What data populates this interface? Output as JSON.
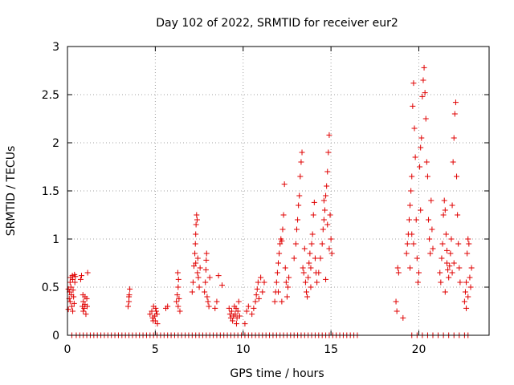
{
  "chart_data": {
    "type": "scatter",
    "title": "Day 102 of 2022, SRMTID for receiver eur2",
    "xlabel": "GPS time / hours",
    "ylabel": "SRMTID / TECUs",
    "xlim": [
      0,
      24
    ],
    "ylim": [
      0,
      3
    ],
    "xticks": [
      0,
      5,
      10,
      15,
      20
    ],
    "xtick_labels": [
      "0",
      "5",
      "10",
      "15",
      "20"
    ],
    "yticks": [
      0,
      0.5,
      1,
      1.5,
      2,
      2.5,
      3
    ],
    "ytick_labels": [
      "0",
      "0.5",
      "1",
      "1.5",
      "2",
      "2.5",
      "3"
    ],
    "grid": true,
    "marker": "plus",
    "color": "#e00000",
    "series": [
      {
        "name": "SRMTID",
        "points": [
          [
            0.05,
            0.27
          ],
          [
            0.1,
            0.38
          ],
          [
            0.12,
            0.45
          ],
          [
            0.15,
            0.55
          ],
          [
            0.18,
            0.6
          ],
          [
            0.2,
            0.5
          ],
          [
            0.22,
            0.42
          ],
          [
            0.25,
            0.3
          ],
          [
            0.28,
            0.62
          ],
          [
            0.3,
            0.58
          ],
          [
            0.32,
            0.47
          ],
          [
            0.35,
            0.4
          ],
          [
            0.38,
            0.33
          ],
          [
            0.4,
            0.63
          ],
          [
            0.42,
            0.55
          ],
          [
            0.45,
            0.61
          ],
          [
            0.05,
            0.48
          ],
          [
            0.15,
            0.35
          ],
          [
            0.3,
            0.25
          ],
          [
            0.75,
            0.58
          ],
          [
            0.8,
            0.62
          ],
          [
            0.85,
            0.3
          ],
          [
            0.88,
            0.42
          ],
          [
            0.9,
            0.35
          ],
          [
            0.95,
            0.28
          ],
          [
            1.0,
            0.32
          ],
          [
            1.05,
            0.22
          ],
          [
            1.1,
            0.38
          ],
          [
            1.12,
            0.3
          ],
          [
            1.15,
            0.65
          ],
          [
            0.9,
            0.25
          ],
          [
            1.0,
            0.4
          ],
          [
            3.45,
            0.3
          ],
          [
            3.5,
            0.35
          ],
          [
            3.52,
            0.42
          ],
          [
            3.55,
            0.48
          ],
          [
            3.5,
            0.4
          ],
          [
            4.7,
            0.22
          ],
          [
            4.8,
            0.25
          ],
          [
            4.85,
            0.18
          ],
          [
            4.9,
            0.3
          ],
          [
            4.95,
            0.2
          ],
          [
            5.0,
            0.15
          ],
          [
            5.05,
            0.25
          ],
          [
            5.1,
            0.22
          ],
          [
            5.12,
            0.12
          ],
          [
            4.88,
            0.15
          ],
          [
            5.02,
            0.28
          ],
          [
            5.6,
            0.28
          ],
          [
            5.7,
            0.3
          ],
          [
            6.2,
            0.35
          ],
          [
            6.25,
            0.42
          ],
          [
            6.3,
            0.5
          ],
          [
            6.32,
            0.58
          ],
          [
            6.28,
            0.65
          ],
          [
            6.35,
            0.38
          ],
          [
            6.4,
            0.25
          ],
          [
            6.3,
            0.3
          ],
          [
            7.1,
            0.45
          ],
          [
            7.15,
            0.55
          ],
          [
            7.2,
            0.72
          ],
          [
            7.25,
            0.85
          ],
          [
            7.28,
            0.95
          ],
          [
            7.3,
            1.05
          ],
          [
            7.32,
            1.15
          ],
          [
            7.35,
            1.25
          ],
          [
            7.38,
            1.2
          ],
          [
            7.4,
            0.65
          ],
          [
            7.42,
            0.8
          ],
          [
            7.45,
            0.6
          ],
          [
            7.5,
            0.5
          ],
          [
            7.55,
            0.7
          ],
          [
            7.3,
            0.75
          ],
          [
            7.8,
            0.45
          ],
          [
            7.85,
            0.55
          ],
          [
            7.9,
            0.78
          ],
          [
            7.92,
            0.85
          ],
          [
            7.95,
            0.4
          ],
          [
            8.0,
            0.35
          ],
          [
            8.05,
            0.3
          ],
          [
            8.1,
            0.6
          ],
          [
            7.88,
            0.68
          ],
          [
            8.4,
            0.28
          ],
          [
            8.5,
            0.35
          ],
          [
            8.6,
            0.62
          ],
          [
            8.8,
            0.52
          ],
          [
            9.2,
            0.28
          ],
          [
            9.25,
            0.22
          ],
          [
            9.3,
            0.18
          ],
          [
            9.35,
            0.25
          ],
          [
            9.4,
            0.15
          ],
          [
            9.45,
            0.2
          ],
          [
            9.5,
            0.3
          ],
          [
            9.55,
            0.22
          ],
          [
            9.6,
            0.28
          ],
          [
            9.65,
            0.18
          ],
          [
            9.7,
            0.25
          ],
          [
            9.75,
            0.35
          ],
          [
            9.8,
            0.2
          ],
          [
            9.62,
            0.12
          ],
          [
            10.1,
            0.12
          ],
          [
            10.2,
            0.25
          ],
          [
            10.3,
            0.3
          ],
          [
            10.5,
            0.22
          ],
          [
            10.6,
            0.28
          ],
          [
            10.7,
            0.35
          ],
          [
            10.75,
            0.42
          ],
          [
            10.8,
            0.48
          ],
          [
            10.85,
            0.55
          ],
          [
            10.9,
            0.38
          ],
          [
            11.0,
            0.6
          ],
          [
            11.1,
            0.45
          ],
          [
            11.2,
            0.55
          ],
          [
            11.8,
            0.35
          ],
          [
            11.85,
            0.45
          ],
          [
            11.9,
            0.55
          ],
          [
            11.95,
            0.65
          ],
          [
            12.0,
            0.75
          ],
          [
            12.05,
            0.85
          ],
          [
            12.1,
            0.95
          ],
          [
            12.15,
            1.0
          ],
          [
            12.2,
            0.98
          ],
          [
            12.25,
            1.1
          ],
          [
            12.3,
            1.25
          ],
          [
            12.35,
            1.57
          ],
          [
            12.4,
            0.7
          ],
          [
            12.45,
            0.55
          ],
          [
            12.5,
            0.4
          ],
          [
            12.55,
            0.5
          ],
          [
            12.6,
            0.6
          ],
          [
            12.0,
            0.45
          ],
          [
            12.2,
            0.35
          ],
          [
            12.9,
            0.8
          ],
          [
            13.0,
            0.95
          ],
          [
            13.05,
            1.1
          ],
          [
            13.1,
            1.2
          ],
          [
            13.15,
            1.35
          ],
          [
            13.2,
            1.45
          ],
          [
            13.25,
            1.65
          ],
          [
            13.3,
            1.8
          ],
          [
            13.35,
            1.9
          ],
          [
            13.4,
            0.7
          ],
          [
            13.45,
            0.65
          ],
          [
            13.5,
            0.9
          ],
          [
            13.55,
            0.55
          ],
          [
            13.6,
            0.45
          ],
          [
            13.65,
            0.4
          ],
          [
            13.7,
            0.6
          ],
          [
            13.75,
            0.75
          ],
          [
            13.8,
            0.85
          ],
          [
            13.85,
            0.7
          ],
          [
            13.9,
            0.95
          ],
          [
            13.95,
            1.05
          ],
          [
            14.0,
            1.25
          ],
          [
            14.05,
            1.38
          ],
          [
            14.1,
            0.8
          ],
          [
            14.15,
            0.65
          ],
          [
            14.2,
            0.55
          ],
          [
            13.85,
            0.5
          ],
          [
            14.3,
            0.65
          ],
          [
            14.4,
            0.8
          ],
          [
            14.5,
            0.95
          ],
          [
            14.55,
            1.1
          ],
          [
            14.6,
            1.2
          ],
          [
            14.65,
            1.3
          ],
          [
            14.7,
            1.45
          ],
          [
            14.75,
            1.55
          ],
          [
            14.8,
            1.7
          ],
          [
            14.85,
            1.9
          ],
          [
            14.9,
            2.08
          ],
          [
            14.95,
            1.25
          ],
          [
            15.0,
            1.0
          ],
          [
            15.05,
            0.85
          ],
          [
            14.7,
            0.58
          ],
          [
            14.8,
            1.15
          ],
          [
            14.9,
            0.9
          ],
          [
            14.6,
            1.4
          ],
          [
            18.7,
            0.35
          ],
          [
            18.75,
            0.25
          ],
          [
            18.8,
            0.7
          ],
          [
            18.85,
            0.65
          ],
          [
            19.1,
            0.18
          ],
          [
            19.3,
            0.85
          ],
          [
            19.35,
            0.95
          ],
          [
            19.4,
            1.05
          ],
          [
            19.45,
            1.2
          ],
          [
            19.5,
            1.35
          ],
          [
            19.55,
            1.5
          ],
          [
            19.6,
            1.65
          ],
          [
            19.65,
            2.38
          ],
          [
            19.7,
            2.62
          ],
          [
            19.75,
            2.15
          ],
          [
            19.8,
            1.85
          ],
          [
            19.85,
            1.2
          ],
          [
            19.9,
            0.8
          ],
          [
            19.95,
            0.55
          ],
          [
            20.0,
            0.65
          ],
          [
            20.05,
            1.75
          ],
          [
            20.1,
            1.95
          ],
          [
            20.15,
            2.05
          ],
          [
            20.2,
            2.48
          ],
          [
            20.25,
            2.65
          ],
          [
            20.3,
            2.78
          ],
          [
            20.35,
            2.52
          ],
          [
            20.4,
            2.25
          ],
          [
            20.45,
            1.8
          ],
          [
            20.5,
            1.65
          ],
          [
            20.55,
            1.2
          ],
          [
            20.6,
            1.0
          ],
          [
            20.65,
            0.85
          ],
          [
            20.7,
            1.4
          ],
          [
            20.75,
            1.1
          ],
          [
            20.8,
            0.9
          ],
          [
            19.6,
            1.05
          ],
          [
            19.7,
            0.95
          ],
          [
            19.5,
            0.7
          ],
          [
            20.1,
            1.3
          ],
          [
            21.2,
            0.65
          ],
          [
            21.25,
            0.55
          ],
          [
            21.3,
            0.8
          ],
          [
            21.35,
            0.95
          ],
          [
            21.4,
            1.25
          ],
          [
            21.45,
            1.4
          ],
          [
            21.5,
            1.3
          ],
          [
            21.55,
            1.05
          ],
          [
            21.6,
            0.75
          ],
          [
            21.65,
            0.68
          ],
          [
            21.7,
            0.6
          ],
          [
            21.75,
            0.72
          ],
          [
            21.8,
            0.85
          ],
          [
            21.85,
            1.0
          ],
          [
            21.9,
            1.35
          ],
          [
            21.95,
            1.8
          ],
          [
            22.0,
            2.05
          ],
          [
            22.05,
            2.3
          ],
          [
            22.1,
            2.42
          ],
          [
            22.15,
            1.65
          ],
          [
            22.2,
            1.25
          ],
          [
            22.25,
            0.95
          ],
          [
            22.3,
            0.7
          ],
          [
            22.35,
            0.55
          ],
          [
            21.5,
            0.45
          ],
          [
            21.6,
            0.88
          ],
          [
            21.9,
            0.65
          ],
          [
            22.0,
            0.75
          ],
          [
            22.6,
            0.35
          ],
          [
            22.65,
            0.45
          ],
          [
            22.7,
            0.55
          ],
          [
            22.75,
            0.85
          ],
          [
            22.8,
            1.0
          ],
          [
            22.85,
            0.95
          ],
          [
            22.9,
            0.6
          ],
          [
            22.95,
            0.5
          ],
          [
            23.0,
            0.7
          ],
          [
            22.7,
            0.28
          ],
          [
            22.8,
            0.4
          ]
        ]
      }
    ],
    "zero_points_x": [
      0.25,
      0.5,
      0.7,
      0.9,
      1.1,
      1.3,
      1.5,
      1.7,
      1.9,
      2.1,
      2.3,
      2.5,
      2.7,
      2.9,
      3.1,
      3.3,
      3.5,
      3.7,
      3.9,
      4.1,
      4.3,
      4.5,
      4.7,
      4.9,
      5.1,
      5.3,
      5.5,
      5.7,
      5.9,
      6.1,
      6.3,
      6.5,
      6.7,
      6.9,
      7.1,
      7.3,
      7.5,
      7.7,
      7.9,
      8.1,
      8.3,
      8.5,
      8.7,
      8.9,
      9.1,
      9.3,
      9.5,
      9.7,
      9.9,
      10.1,
      10.3,
      10.5,
      10.7,
      10.9,
      11.1,
      11.3,
      11.5,
      11.7,
      11.9,
      12.1,
      12.3,
      12.5,
      12.7,
      12.9,
      13.1,
      13.3,
      13.5,
      13.7,
      13.9,
      14.1,
      14.3,
      14.5,
      14.7,
      14.9,
      15.1,
      15.3,
      15.5,
      15.7,
      15.9,
      16.1,
      16.3,
      16.5,
      19.6,
      19.9,
      20.2,
      20.5,
      20.8,
      21.1,
      21.4,
      21.7,
      22.0,
      22.3,
      22.6,
      22.8
    ]
  }
}
